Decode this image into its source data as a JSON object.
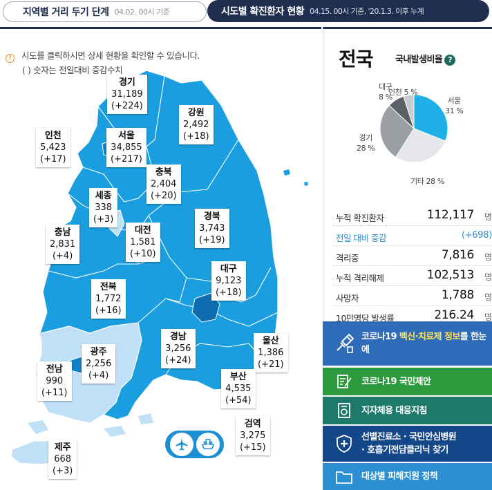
{
  "header": {
    "tab1_title": "지역별 거리 두기 단계",
    "tab1_sub": "04.02. 00시 기준",
    "tab2_title": "시도별 확진환자 현황",
    "tab2_sub": "04.15. 00시 기준, '20.1.3. 이후 누계"
  },
  "notice": {
    "line1": "시도를 클릭하시면 상세 현황을 확인할 수 있습니다.",
    "line2": "( ) 숫자는 전일대비 증감수치"
  },
  "regions": [
    {
      "name": "경기",
      "count": "31,189",
      "diff": "(+224)"
    },
    {
      "name": "강원",
      "count": "2,492",
      "diff": "(+18)"
    },
    {
      "name": "인천",
      "count": "5,423",
      "diff": "(+17)"
    },
    {
      "name": "서울",
      "count": "34,855",
      "diff": "(+217)"
    },
    {
      "name": "충북",
      "count": "2,404",
      "diff": "(+20)"
    },
    {
      "name": "세종",
      "count": "338",
      "diff": "(+3)"
    },
    {
      "name": "충남",
      "count": "2,831",
      "diff": "(+4)"
    },
    {
      "name": "대전",
      "count": "1,581",
      "diff": "(+10)"
    },
    {
      "name": "경북",
      "count": "3,743",
      "diff": "(+19)"
    },
    {
      "name": "대구",
      "count": "9,123",
      "diff": "(+18)"
    },
    {
      "name": "전북",
      "count": "1,772",
      "diff": "(+16)"
    },
    {
      "name": "경남",
      "count": "3,256",
      "diff": "(+24)"
    },
    {
      "name": "울산",
      "count": "1,386",
      "diff": "(+21)"
    },
    {
      "name": "광주",
      "count": "2,256",
      "diff": "(+4)"
    },
    {
      "name": "전남",
      "count": "990",
      "diff": "(+11)"
    },
    {
      "name": "부산",
      "count": "4,535",
      "diff": "(+54)"
    },
    {
      "name": "검역",
      "count": "3,275",
      "diff": "(+15)"
    },
    {
      "name": "제주",
      "count": "668",
      "diff": "(+3)"
    }
  ],
  "transport_icons": [
    "airplane-icon",
    "ship-icon"
  ],
  "national": {
    "title": "전국",
    "ratio_label": "국내발생비율",
    "ratio_help": "?",
    "pie": [
      {
        "name": "서울",
        "value": 31,
        "label": "31 %",
        "color": "#1fb0e8"
      },
      {
        "name": "기타",
        "value": 28,
        "label": "기타 28 %",
        "color": "#e4e6e9"
      },
      {
        "name": "경기",
        "value": 28,
        "label": "28 %",
        "color": "#9b9fa4"
      },
      {
        "name": "대구",
        "value": 8,
        "label": "8 %",
        "color": "#5c6066"
      },
      {
        "name": "인천",
        "value": 5,
        "label": "인천 5 %",
        "color": "#c8cbcf"
      }
    ],
    "stats": [
      {
        "key": "누적 확진환자",
        "value": "112,117",
        "unit": "명"
      },
      {
        "key": "전일 대비 증감",
        "value": "(+698)",
        "unit": ""
      },
      {
        "key": "격리중",
        "value": "7,816",
        "unit": "명"
      },
      {
        "key": "누적 격리해제",
        "value": "102,513",
        "unit": "명"
      },
      {
        "key": "사망자",
        "value": "1,788",
        "unit": "명"
      },
      {
        "key": "10만명당 발생률",
        "value": "216.24",
        "unit": "명"
      }
    ]
  },
  "buttons": [
    {
      "pre": "코로나19 ",
      "highlight": "백신·치료제 정보",
      "post": "를 한눈에",
      "color": "#2e6bb8",
      "icon": "syringe-icon"
    },
    {
      "pre": "코로나19 국민제안",
      "highlight": "",
      "post": "",
      "color": "#2a9a3c",
      "icon": "edit-document-icon"
    },
    {
      "pre": "지자체용 대응지침",
      "highlight": "",
      "post": "",
      "color": "#1d7a6a",
      "icon": "guideline-icon"
    },
    {
      "pre": "선별진료소 · 국민안심병원",
      "highlight": "",
      "post": "· 호흡기전담클리닉 찾기",
      "color": "#14468a",
      "icon": "hospital-shield-icon"
    },
    {
      "pre": "대상별 피해지원 정책",
      "highlight": "",
      "post": "",
      "color": "#2b8fd2",
      "icon": "folder-icon"
    }
  ]
}
